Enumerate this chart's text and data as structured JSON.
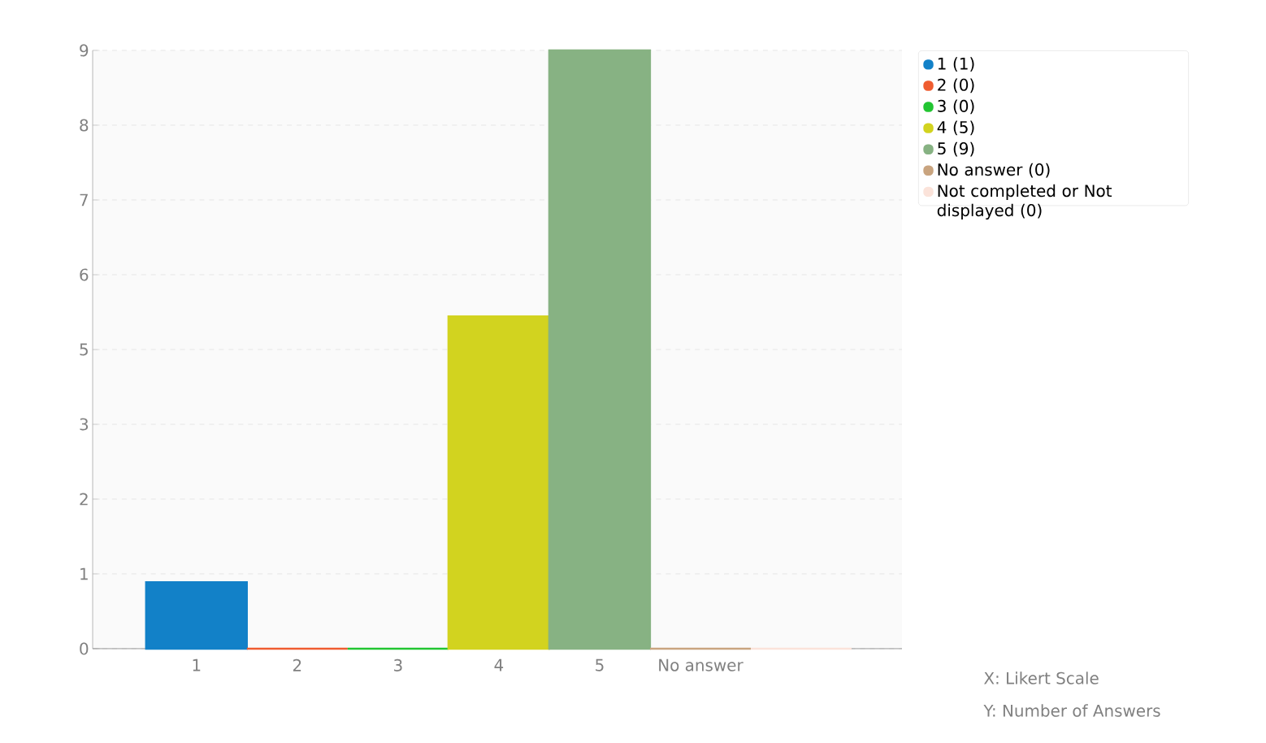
{
  "chart_data": {
    "type": "bar",
    "categories": [
      "1",
      "2",
      "3",
      "4",
      "5",
      "No answer",
      null
    ],
    "series": [
      {
        "name": "1 (1)",
        "color": "#1281c8",
        "values": [
          1,
          null,
          null,
          null,
          null,
          null,
          null
        ]
      },
      {
        "name": "2 (0)",
        "color": "#ef5c30",
        "values": [
          null,
          0,
          null,
          null,
          null,
          null,
          null
        ]
      },
      {
        "name": "3 (0)",
        "color": "#22c532",
        "values": [
          null,
          null,
          0,
          null,
          null,
          null,
          null
        ]
      },
      {
        "name": "4 (5)",
        "color": "#d2d31f",
        "values": [
          null,
          null,
          null,
          5,
          null,
          null,
          null
        ]
      },
      {
        "name": "5 (9)",
        "color": "#87b283",
        "values": [
          null,
          null,
          null,
          null,
          9,
          null,
          null
        ]
      },
      {
        "name": "No answer (0)",
        "color": "#c9a47f",
        "values": [
          null,
          null,
          null,
          null,
          null,
          0,
          null
        ]
      },
      {
        "name": "Not completed or Not displayed (0)",
        "color": "#fbe3da",
        "values": [
          null,
          null,
          null,
          null,
          null,
          null,
          0
        ]
      }
    ],
    "ylim": [
      0,
      9
    ],
    "yticks": [
      0,
      {
        "value": 1.125,
        "label": "1"
      },
      {
        "value": 2.25,
        "label": "2"
      },
      {
        "value": 3.375,
        "label": "3"
      },
      {
        "value": 4.5,
        "label": "5"
      },
      {
        "value": 5.625,
        "label": "6"
      },
      {
        "value": 6.75,
        "label": "7"
      },
      {
        "value": 7.875,
        "label": "8"
      },
      9
    ],
    "grid": "y",
    "legend": "top right",
    "annotations": [
      "X: Likert Scale",
      "Y: Number of Answers"
    ]
  }
}
